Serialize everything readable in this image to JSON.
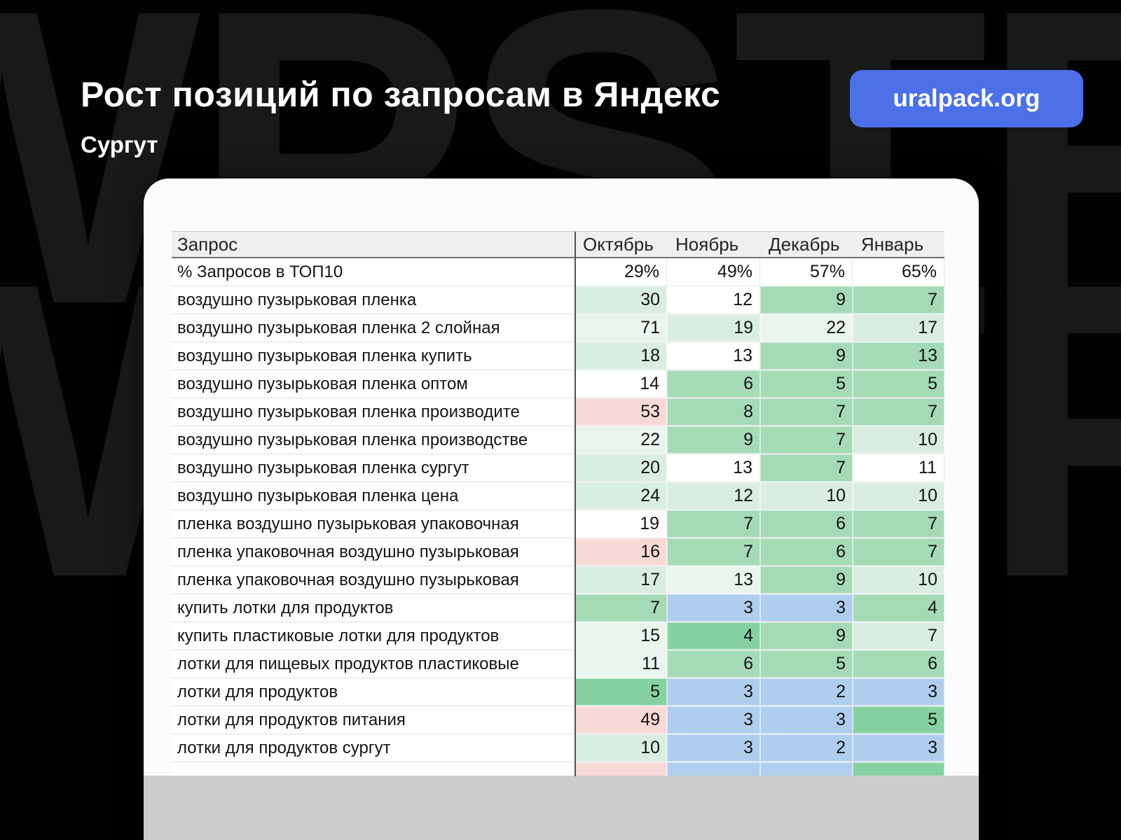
{
  "page": {
    "title": "Рост позиций по запросам в Яндекс",
    "subtitle": "Сургут",
    "badge": "uralpack.org",
    "watermark": "WPSTR"
  },
  "colors": {
    "badge_bg": "#4b70e8",
    "cell_white": "#ffffff",
    "cell_green_pale": "#eaf5ee",
    "cell_green_light": "#d9eee1",
    "cell_green_mid": "#a5dab6",
    "cell_green_strong": "#85d1a1",
    "cell_blue": "#afcdef",
    "cell_pink": "#f7d9d7"
  },
  "table": {
    "query_header": "Запрос",
    "month_headers": [
      "Октябрь",
      "Ноябрь",
      "Декабрь",
      "Январь"
    ],
    "rows": [
      {
        "query": "% Запросов в ТОП10",
        "values": [
          "29%",
          "49%",
          "57%",
          "65%"
        ],
        "colors": [
          "w",
          "w",
          "w",
          "w"
        ],
        "partial": false
      },
      {
        "query": "воздушно пузырьковая пленка",
        "values": [
          "30",
          "12",
          "9",
          "7"
        ],
        "colors": [
          "g2",
          "w",
          "g3",
          "g3"
        ],
        "partial": false
      },
      {
        "query": "воздушно пузырьковая пленка 2 слойная",
        "values": [
          "71",
          "19",
          "22",
          "17"
        ],
        "colors": [
          "g1",
          "g2",
          "g1",
          "g2"
        ],
        "partial": false
      },
      {
        "query": "воздушно пузырьковая пленка купить",
        "values": [
          "18",
          "13",
          "9",
          "13"
        ],
        "colors": [
          "g2",
          "w",
          "g3",
          "g3"
        ],
        "partial": false
      },
      {
        "query": "воздушно пузырьковая пленка оптом",
        "values": [
          "14",
          "6",
          "5",
          "5"
        ],
        "colors": [
          "w",
          "g3",
          "g3",
          "g3"
        ],
        "partial": false
      },
      {
        "query": "воздушно пузырьковая пленка производите",
        "values": [
          "53",
          "8",
          "7",
          "7"
        ],
        "colors": [
          "p",
          "g3",
          "g3",
          "g3"
        ],
        "partial": false
      },
      {
        "query": "воздушно пузырьковая пленка производстве",
        "values": [
          "22",
          "9",
          "7",
          "10"
        ],
        "colors": [
          "g1",
          "g3",
          "g3",
          "g2"
        ],
        "partial": false
      },
      {
        "query": "воздушно пузырьковая пленка сургут",
        "values": [
          "20",
          "13",
          "7",
          "11"
        ],
        "colors": [
          "g2",
          "w",
          "g3",
          "w"
        ],
        "partial": false
      },
      {
        "query": "воздушно пузырьковая пленка цена",
        "values": [
          "24",
          "12",
          "10",
          "10"
        ],
        "colors": [
          "g2",
          "g2",
          "g2",
          "g2"
        ],
        "partial": false
      },
      {
        "query": "пленка воздушно пузырьковая упаковочная",
        "values": [
          "19",
          "7",
          "6",
          "7"
        ],
        "colors": [
          "w",
          "g3",
          "g3",
          "g3"
        ],
        "partial": false
      },
      {
        "query": "пленка упаковочная воздушно пузырьковая",
        "values": [
          "16",
          "7",
          "6",
          "7"
        ],
        "colors": [
          "p",
          "g3",
          "g3",
          "g3"
        ],
        "partial": false
      },
      {
        "query": "пленка упаковочная воздушно пузырьковая",
        "values": [
          "17",
          "13",
          "9",
          "10"
        ],
        "colors": [
          "g2",
          "g1",
          "g3",
          "g2"
        ],
        "partial": false
      },
      {
        "query": "купить лотки для продуктов",
        "values": [
          "7",
          "3",
          "3",
          "4"
        ],
        "colors": [
          "g3",
          "b",
          "b",
          "g3"
        ],
        "partial": false
      },
      {
        "query": "купить пластиковые лотки для продуктов",
        "values": [
          "15",
          "4",
          "9",
          "7"
        ],
        "colors": [
          "g1",
          "g4",
          "g3",
          "g2"
        ],
        "partial": false
      },
      {
        "query": "лотки для пищевых продуктов пластиковые",
        "values": [
          "11",
          "6",
          "5",
          "6"
        ],
        "colors": [
          "g1",
          "g3",
          "g3",
          "g3"
        ],
        "partial": false
      },
      {
        "query": "лотки для продуктов",
        "values": [
          "5",
          "3",
          "2",
          "3"
        ],
        "colors": [
          "g4",
          "b",
          "b",
          "b"
        ],
        "partial": false
      },
      {
        "query": "лотки для продуктов питания",
        "values": [
          "49",
          "3",
          "3",
          "5"
        ],
        "colors": [
          "p",
          "b",
          "b",
          "g4"
        ],
        "partial": false
      },
      {
        "query": "лотки для продуктов сургут",
        "values": [
          "10",
          "3",
          "2",
          "3"
        ],
        "colors": [
          "g2",
          "b",
          "b",
          "b"
        ],
        "partial": false
      },
      {
        "query": "",
        "values": [
          "",
          "",
          "",
          ""
        ],
        "colors": [
          "p",
          "b",
          "b",
          "g4"
        ],
        "partial": true
      }
    ]
  }
}
